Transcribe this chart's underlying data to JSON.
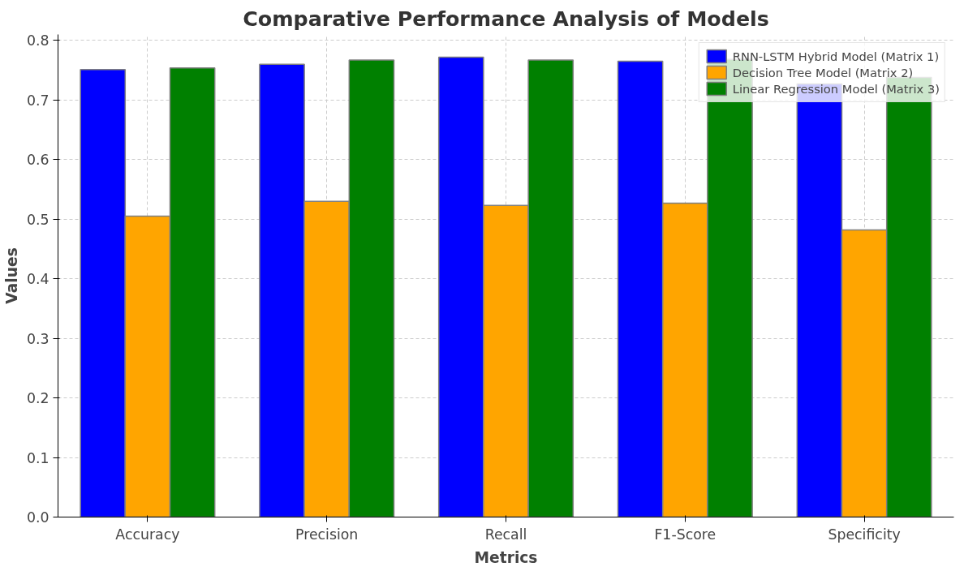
{
  "chart_data": {
    "type": "bar",
    "title": "Comparative Performance Analysis of Models",
    "xlabel": "Metrics",
    "ylabel": "Values",
    "categories": [
      "Accuracy",
      "Precision",
      "Recall",
      "F1-Score",
      "Specificity"
    ],
    "series": [
      {
        "name": "RNN-LSTM Hybrid Model (Matrix 1)",
        "color": "#0000ff",
        "values": [
          0.751,
          0.76,
          0.772,
          0.765,
          0.727
        ]
      },
      {
        "name": "Decision Tree Model (Matrix 2)",
        "color": "#ffa500",
        "values": [
          0.505,
          0.53,
          0.523,
          0.527,
          0.482
        ]
      },
      {
        "name": "Linear Regression Model (Matrix 3)",
        "color": "#008000",
        "values": [
          0.754,
          0.767,
          0.767,
          0.768,
          0.738
        ]
      }
    ],
    "ylim": [
      0,
      0.81
    ],
    "yticks": [
      {
        "value": 0,
        "label": "0.0"
      },
      0.1,
      0.2,
      0.3,
      0.4,
      0.5,
      0.6,
      0.7,
      0.8
    ],
    "grid": true,
    "legend": "top right"
  }
}
